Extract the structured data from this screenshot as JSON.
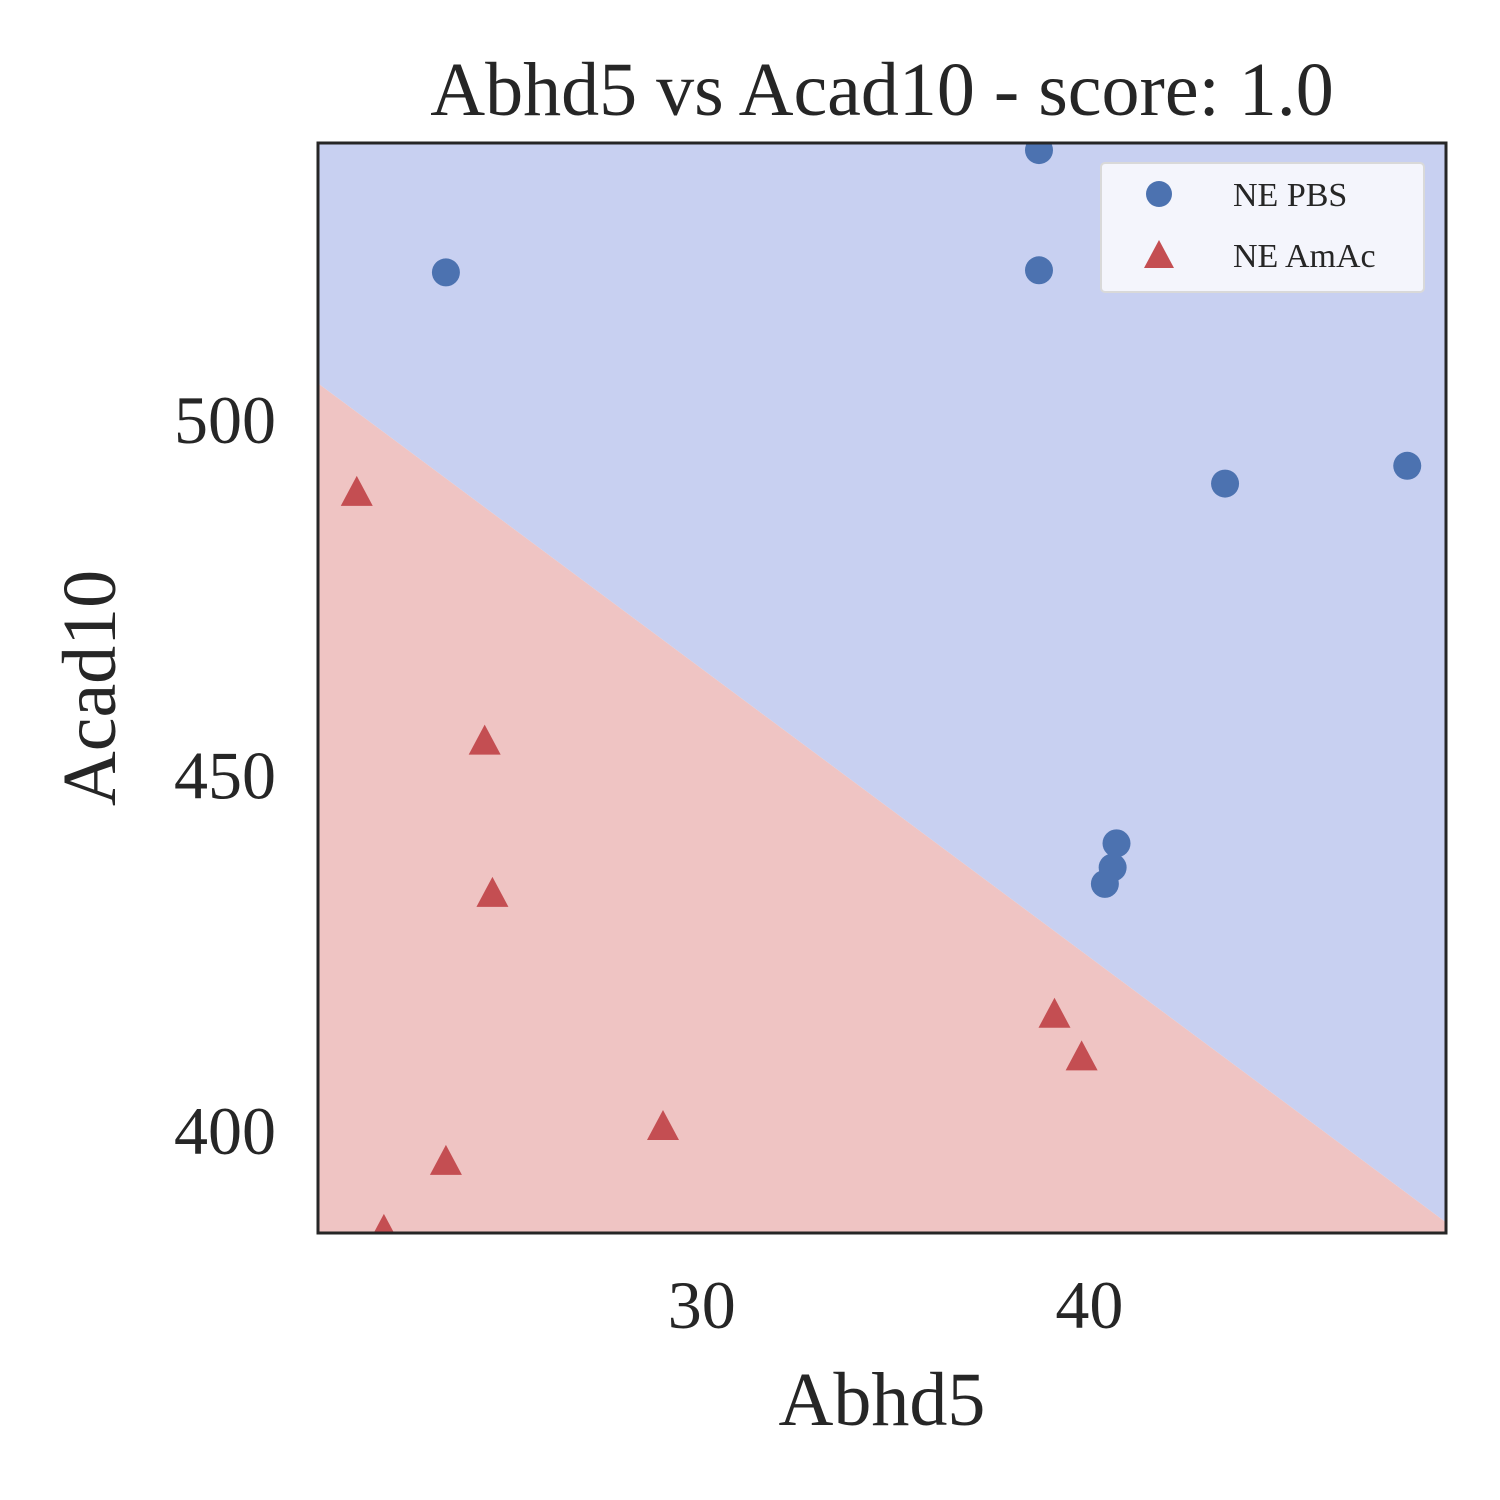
{
  "chart_data": {
    "type": "scatter",
    "title": "Abhd5 vs Acad10 - score: 1.0",
    "xlabel": "Abhd5",
    "ylabel": "Acad10",
    "xlim": [
      20.1,
      49.2
    ],
    "ylim": [
      385.5,
      538.8
    ],
    "xticks": [
      30,
      40
    ],
    "xtick_labels": [
      "30",
      "40"
    ],
    "yticks": [
      400,
      450,
      500
    ],
    "ytick_labels": [
      "400",
      "450",
      "500"
    ],
    "grid": false,
    "legend_position": "upper right",
    "decision_boundary": {
      "line": [
        [
          20.1,
          505.0
        ],
        [
          49.2,
          387.0
        ]
      ],
      "region_above_color": "#c8d0f1",
      "region_below_color": "#efc4c3"
    },
    "series": [
      {
        "name": "NE PBS",
        "marker": "circle",
        "color": "#4c72b0",
        "points": [
          {
            "x": 23.4,
            "y": 520.6
          },
          {
            "x": 38.7,
            "y": 537.8
          },
          {
            "x": 38.7,
            "y": 520.9
          },
          {
            "x": 43.5,
            "y": 490.9
          },
          {
            "x": 48.2,
            "y": 493.4
          },
          {
            "x": 40.7,
            "y": 440.3
          },
          {
            "x": 40.6,
            "y": 436.9
          },
          {
            "x": 40.4,
            "y": 434.6
          }
        ]
      },
      {
        "name": "NE AmAc",
        "marker": "triangle",
        "color": "#c44e52",
        "points": [
          {
            "x": 21.1,
            "y": 489.6
          },
          {
            "x": 24.4,
            "y": 454.6
          },
          {
            "x": 24.6,
            "y": 433.2
          },
          {
            "x": 39.1,
            "y": 416.2
          },
          {
            "x": 39.8,
            "y": 410.2
          },
          {
            "x": 29.0,
            "y": 400.4
          },
          {
            "x": 23.4,
            "y": 395.5
          },
          {
            "x": 21.8,
            "y": 385.8
          }
        ]
      }
    ]
  }
}
